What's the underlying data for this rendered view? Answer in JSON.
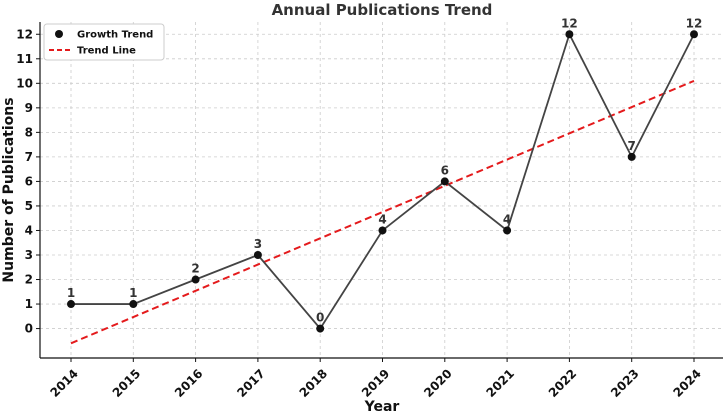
{
  "chart_data": {
    "type": "line",
    "title": "Annual Publications Trend",
    "xlabel": "Year",
    "ylabel": "Number of Publications",
    "categories": [
      "2014",
      "2015",
      "2016",
      "2017",
      "2018",
      "2019",
      "2020",
      "2021",
      "2022",
      "2023",
      "2024"
    ],
    "y_ticks": [
      "0",
      "1",
      "2",
      "3",
      "4",
      "5",
      "6",
      "7",
      "8",
      "9",
      "10",
      "11",
      "12"
    ],
    "ylim": [
      -1.2,
      12.5
    ],
    "grid": true,
    "legend_position": "top-left",
    "series": [
      {
        "name": "Growth Trend",
        "kind": "line-with-markers",
        "color": "#444444",
        "marker_color": "#111111",
        "values": [
          1,
          1,
          2,
          3,
          0,
          4,
          6,
          4,
          12,
          7,
          12
        ],
        "data_labels": [
          "1",
          "1",
          "2",
          "3",
          "0",
          "4",
          "6",
          "4",
          "12",
          "7",
          "12"
        ]
      },
      {
        "name": "Trend Line",
        "kind": "dashed-line",
        "color": "#e41a1c",
        "values": [
          -0.6,
          0.47,
          1.54,
          2.61,
          3.68,
          4.75,
          5.82,
          6.89,
          7.96,
          9.03,
          10.1
        ]
      }
    ]
  }
}
